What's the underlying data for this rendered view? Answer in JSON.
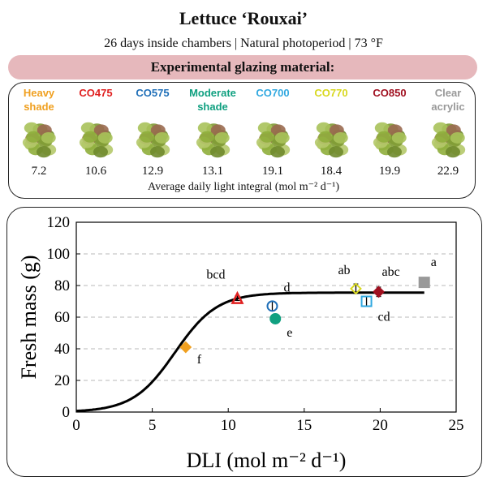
{
  "header": {
    "title": "Lettuce ‘Rouxai’",
    "subtitle": "26 days inside chambers | Natural photoperiod | 73 °F",
    "banner": "Experimental glazing material:"
  },
  "treatments": [
    {
      "line1": "Heavy",
      "line2": "shade",
      "color": "#f0a020",
      "dli": "7.2"
    },
    {
      "line1": "CO475",
      "line2": "",
      "color": "#e02020",
      "dli": "10.6"
    },
    {
      "line1": "CO575",
      "line2": "",
      "color": "#1f6fb8",
      "dli": "12.9"
    },
    {
      "line1": "Moderate",
      "line2": "shade",
      "color": "#10a080",
      "dli": "13.1"
    },
    {
      "line1": "CO700",
      "line2": "",
      "color": "#30a8e0",
      "dli": "19.1"
    },
    {
      "line1": "CO770",
      "line2": "",
      "color": "#d8d820",
      "dli": "18.4"
    },
    {
      "line1": "CO850",
      "line2": "",
      "color": "#a01020",
      "dli": "19.9"
    },
    {
      "line1": "Clear",
      "line2": "acrylic",
      "color": "#999999",
      "dli": "22.9"
    }
  ],
  "avg_label": "Average daily light integral (mol m⁻² d⁻¹)",
  "chart_data": {
    "type": "scatter",
    "xlabel": "DLI (mol m⁻² d⁻¹)",
    "ylabel": "Fresh mass (g)",
    "xlim": [
      0,
      25
    ],
    "ylim": [
      0,
      120
    ],
    "xticks": [
      0,
      5,
      10,
      15,
      20,
      25
    ],
    "yticks": [
      0,
      20,
      40,
      60,
      80,
      100,
      120
    ],
    "grid": "horizontal dashed",
    "points": [
      {
        "x": 7.2,
        "y": 41,
        "err": 1.5,
        "letter": "f",
        "color": "#f0a020",
        "marker": "diamond"
      },
      {
        "x": 10.6,
        "y": 72,
        "err": 1.5,
        "letter": "bcd",
        "color": "#e02020",
        "marker": "triangle"
      },
      {
        "x": 12.9,
        "y": 67,
        "err": 3,
        "letter": "d",
        "color": "#1f6fb8",
        "marker": "circle-open"
      },
      {
        "x": 13.1,
        "y": 59,
        "err": 3,
        "letter": "e",
        "color": "#10a080",
        "marker": "circle"
      },
      {
        "x": 18.4,
        "y": 78,
        "err": 3,
        "letter": "ab",
        "color": "#d8d820",
        "marker": "diamond-open"
      },
      {
        "x": 19.1,
        "y": 70,
        "err": 3,
        "letter": "cd",
        "color": "#30a8e0",
        "marker": "square-open"
      },
      {
        "x": 19.9,
        "y": 76,
        "err": 3,
        "letter": "abc",
        "color": "#a01020",
        "marker": "diamond"
      },
      {
        "x": 22.9,
        "y": 82,
        "err": 2.5,
        "letter": "a",
        "color": "#999999",
        "marker": "square"
      }
    ],
    "fit_curve": {
      "asymptote": 75.5,
      "k": 0.72,
      "x50": 6.5
    }
  }
}
